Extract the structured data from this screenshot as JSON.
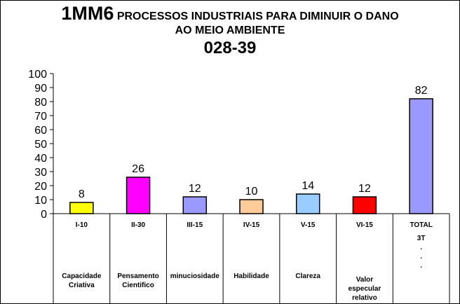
{
  "title": {
    "code": "1MM6",
    "text": "PROCESSOS INDUSTRIAIS  PARA DIMINUIR O DANO",
    "line2": "AO MEIO AMBIENTE",
    "line3": "028-39"
  },
  "chart_data": {
    "type": "bar",
    "categories": [
      "I-10",
      "II-30",
      "III-15",
      "IV-15",
      "V-15",
      "VI-15",
      "TOTAL"
    ],
    "values": [
      8,
      26,
      12,
      10,
      14,
      12,
      82
    ],
    "descriptions": [
      [
        "Capacidade",
        "Criativa"
      ],
      [
        "Pensamento",
        "Cientifico"
      ],
      [
        "minuciosidade"
      ],
      [
        "Habilidade"
      ],
      [
        "Clareza"
      ],
      [
        "Valor",
        "especular",
        "relativo"
      ],
      [
        "3T",
        ".",
        ".",
        "."
      ]
    ],
    "bar_colors": [
      "#ffff00",
      "#ff00ff",
      "#9999ff",
      "#ffcc99",
      "#99ccff",
      "#ff0000",
      "#9999ff"
    ],
    "ylim": [
      0,
      100
    ],
    "yticks": [
      "0",
      "10",
      "20",
      "30",
      "40",
      "50",
      "60",
      "70",
      "80",
      "90",
      "100"
    ],
    "grid": false,
    "legend": "none"
  }
}
